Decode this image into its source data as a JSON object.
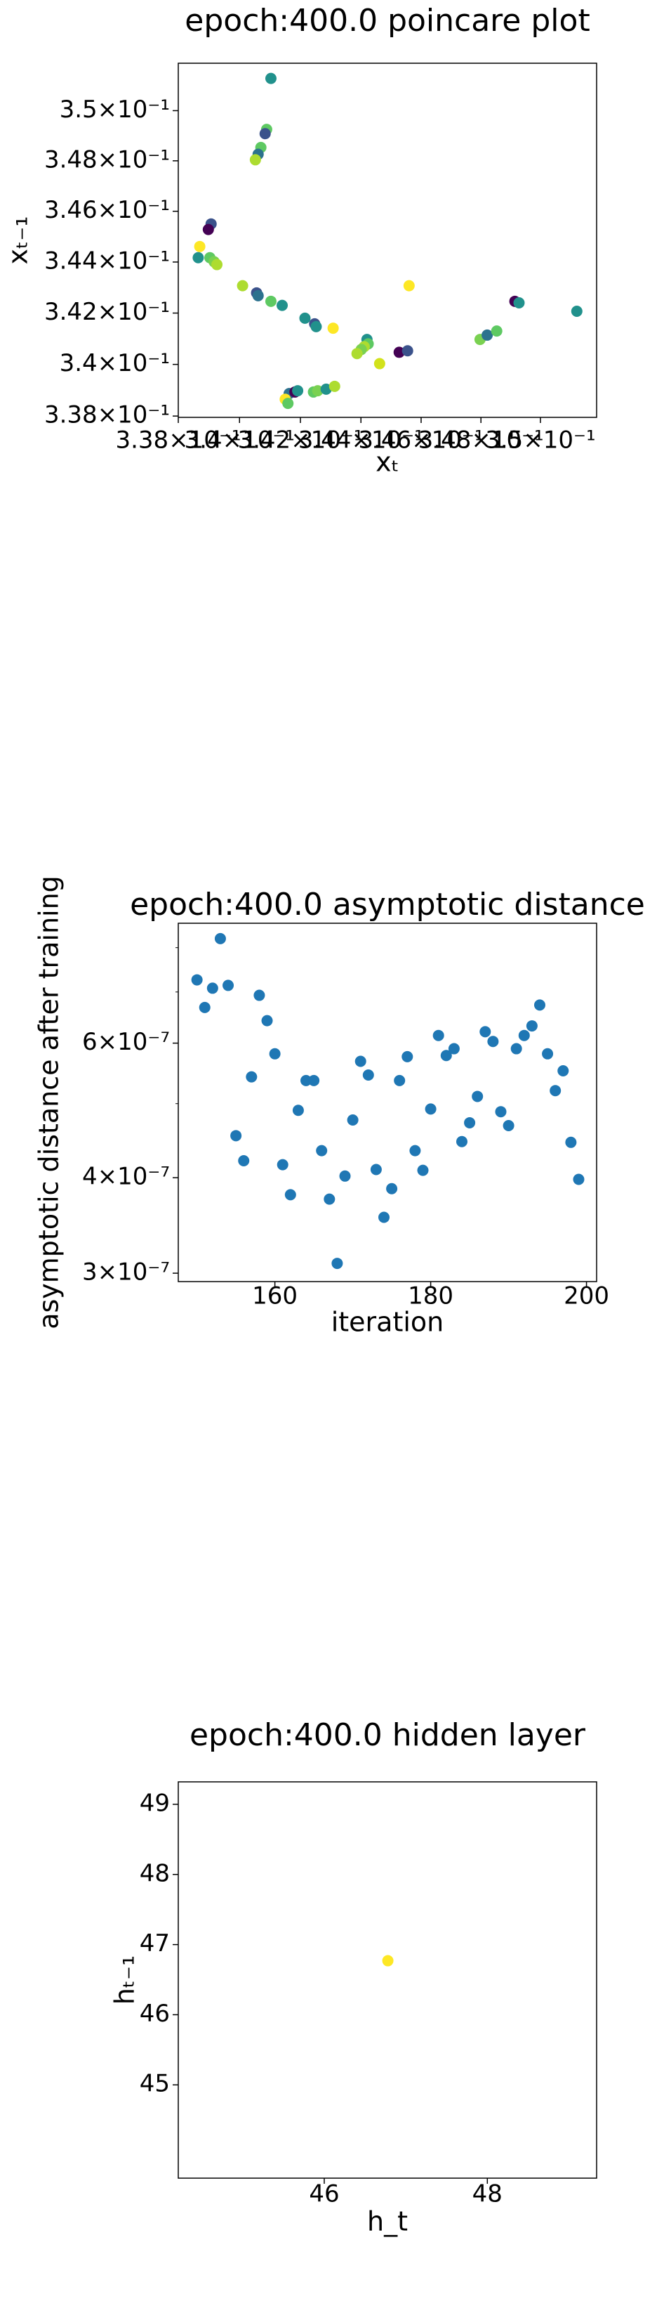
{
  "chart_data": [
    {
      "type": "scatter",
      "title": "epoch:400.0 poincare plot",
      "xlabel": "xₜ",
      "ylabel": "xₜ₋₁",
      "xscale": "log",
      "yscale": "log",
      "xlim": [
        0.338,
        0.3519
      ],
      "ylim": [
        0.33795,
        0.3519
      ],
      "xticks": [
        {
          "value": 0.338,
          "label": "3.38×10⁻¹"
        },
        {
          "value": 0.34,
          "label": "3.4×10⁻¹"
        },
        {
          "value": 0.342,
          "label": "3.42×10⁻¹"
        },
        {
          "value": 0.344,
          "label": "3.44×10⁻¹"
        },
        {
          "value": 0.346,
          "label": "3.46×10⁻¹"
        },
        {
          "value": 0.348,
          "label": "3.48×10⁻¹"
        },
        {
          "value": 0.35,
          "label": "3.5×10⁻¹"
        }
      ],
      "yticks": [
        {
          "value": 0.338,
          "label": "3.38×10⁻¹"
        },
        {
          "value": 0.34,
          "label": "3.4×10⁻¹"
        },
        {
          "value": 0.342,
          "label": "3.42×10⁻¹"
        },
        {
          "value": 0.344,
          "label": "3.44×10⁻¹"
        },
        {
          "value": 0.346,
          "label": "3.46×10⁻¹"
        },
        {
          "value": 0.348,
          "label": "3.48×10⁻¹"
        },
        {
          "value": 0.35,
          "label": "3.5×10⁻¹"
        }
      ],
      "x": [
        0.34103,
        0.34089,
        0.34084,
        0.3407,
        0.34061,
        0.34052,
        0.33907,
        0.33898,
        0.3387,
        0.33865,
        0.33903,
        0.33917,
        0.33926,
        0.3401,
        0.34056,
        0.34061,
        0.34103,
        0.3414,
        0.34215,
        0.34247,
        0.34252,
        0.34308,
        0.3442,
        0.34424,
        0.34411,
        0.34401,
        0.34387,
        0.34462,
        0.3456,
        0.34527,
        0.34555,
        0.34163,
        0.34182,
        0.34191,
        0.3415,
        0.34159,
        0.34243,
        0.34257,
        0.34285,
        0.34313,
        0.34797,
        0.34821,
        0.34853,
        0.34914,
        0.34928,
        0.35123
      ],
      "y": [
        0.35129,
        0.34925,
        0.34908,
        0.34853,
        0.34826,
        0.34804,
        0.3455,
        0.34528,
        0.34461,
        0.34417,
        0.34417,
        0.34401,
        0.3439,
        0.34307,
        0.34279,
        0.34268,
        0.34246,
        0.3423,
        0.3418,
        0.34158,
        0.34147,
        0.34141,
        0.34097,
        0.3408,
        0.34069,
        0.34058,
        0.34042,
        0.34003,
        0.34307,
        0.34047,
        0.34053,
        0.33887,
        0.33893,
        0.33898,
        0.33865,
        0.33849,
        0.33893,
        0.33898,
        0.33904,
        0.33915,
        0.34097,
        0.34114,
        0.3413,
        0.34246,
        0.3424,
        0.34207
      ],
      "colors": [
        "#21918c",
        "#5ec962",
        "#3b528b",
        "#5ec962",
        "#2c728e",
        "#addc30",
        "#3b528b",
        "#440154",
        "#fde725",
        "#21918c",
        "#5ec962",
        "#7ad151",
        "#addc30",
        "#addc30",
        "#3b528b",
        "#2c728e",
        "#5ec962",
        "#21918c",
        "#21918c",
        "#3b528b",
        "#21918c",
        "#fde725",
        "#21918c",
        "#5ec962",
        "#addc30",
        "#7ad151",
        "#addc30",
        "#d2e21b",
        "#fde725",
        "#440154",
        "#3b528b",
        "#2c728e",
        "#440154",
        "#21918c",
        "#fde725",
        "#5ec962",
        "#5ec962",
        "#7ad151",
        "#21918c",
        "#addc30",
        "#7ad151",
        "#2c728e",
        "#5ec962",
        "#440154",
        "#21918c",
        "#21918c"
      ]
    },
    {
      "type": "scatter",
      "title": "epoch:400.0 asymptotic distance",
      "xlabel": "iteration",
      "ylabel": "asymptotic distance after training",
      "yscale": "log",
      "color": "#1f77b4",
      "xlim": [
        147.6,
        201.3
      ],
      "ylim": [
        2.925e-07,
        8.61e-07
      ],
      "xticks": [
        160,
        180,
        200
      ],
      "yticks": [
        {
          "value": 3e-07,
          "label": "3×10⁻⁷"
        },
        {
          "value": 4e-07,
          "label": "4×10⁻⁷"
        },
        {
          "value": 6e-07,
          "label": "6×10⁻⁷"
        }
      ],
      "yminorticks": [
        5e-07,
        7e-07,
        8e-07
      ],
      "x": [
        150,
        151,
        152,
        153,
        154,
        155,
        156,
        157,
        158,
        159,
        160,
        161,
        162,
        163,
        164,
        165,
        166,
        167,
        168,
        169,
        170,
        171,
        172,
        173,
        174,
        175,
        176,
        177,
        178,
        179,
        180,
        181,
        182,
        183,
        184,
        185,
        186,
        187,
        188,
        189,
        190,
        191,
        192,
        193,
        194,
        195,
        196,
        197,
        198,
        199
      ],
      "y": [
        7.26e-07,
        6.68e-07,
        7.08e-07,
        8.22e-07,
        7.14e-07,
        4.54e-07,
        4.21e-07,
        5.42e-07,
        6.93e-07,
        6.42e-07,
        5.81e-07,
        4.16e-07,
        3.8e-07,
        4.9e-07,
        5.36e-07,
        5.36e-07,
        4.34e-07,
        3.75e-07,
        3.09e-07,
        4.02e-07,
        4.76e-07,
        5.68e-07,
        5.45e-07,
        4.1e-07,
        3.55e-07,
        3.87e-07,
        5.36e-07,
        5.76e-07,
        4.34e-07,
        4.09e-07,
        4.92e-07,
        6.14e-07,
        5.78e-07,
        5.9e-07,
        4.46e-07,
        4.72e-07,
        5.11e-07,
        6.21e-07,
        6.03e-07,
        4.88e-07,
        4.68e-07,
        5.9e-07,
        6.14e-07,
        6.32e-07,
        6.73e-07,
        5.81e-07,
        5.2e-07,
        5.52e-07,
        4.45e-07,
        3.98e-07
      ]
    },
    {
      "type": "scatter",
      "title": "epoch:400.0 hidden layer",
      "xlabel": "h_t",
      "ylabel": "hₜ₋₁",
      "color": "#fde725",
      "xlim": [
        44.21,
        49.34
      ],
      "ylim": [
        43.67,
        49.32
      ],
      "xticks": [
        46,
        48
      ],
      "yticks": [
        45,
        46,
        47,
        48,
        49
      ],
      "x": [
        46.78
      ],
      "y": [
        46.77
      ]
    }
  ]
}
